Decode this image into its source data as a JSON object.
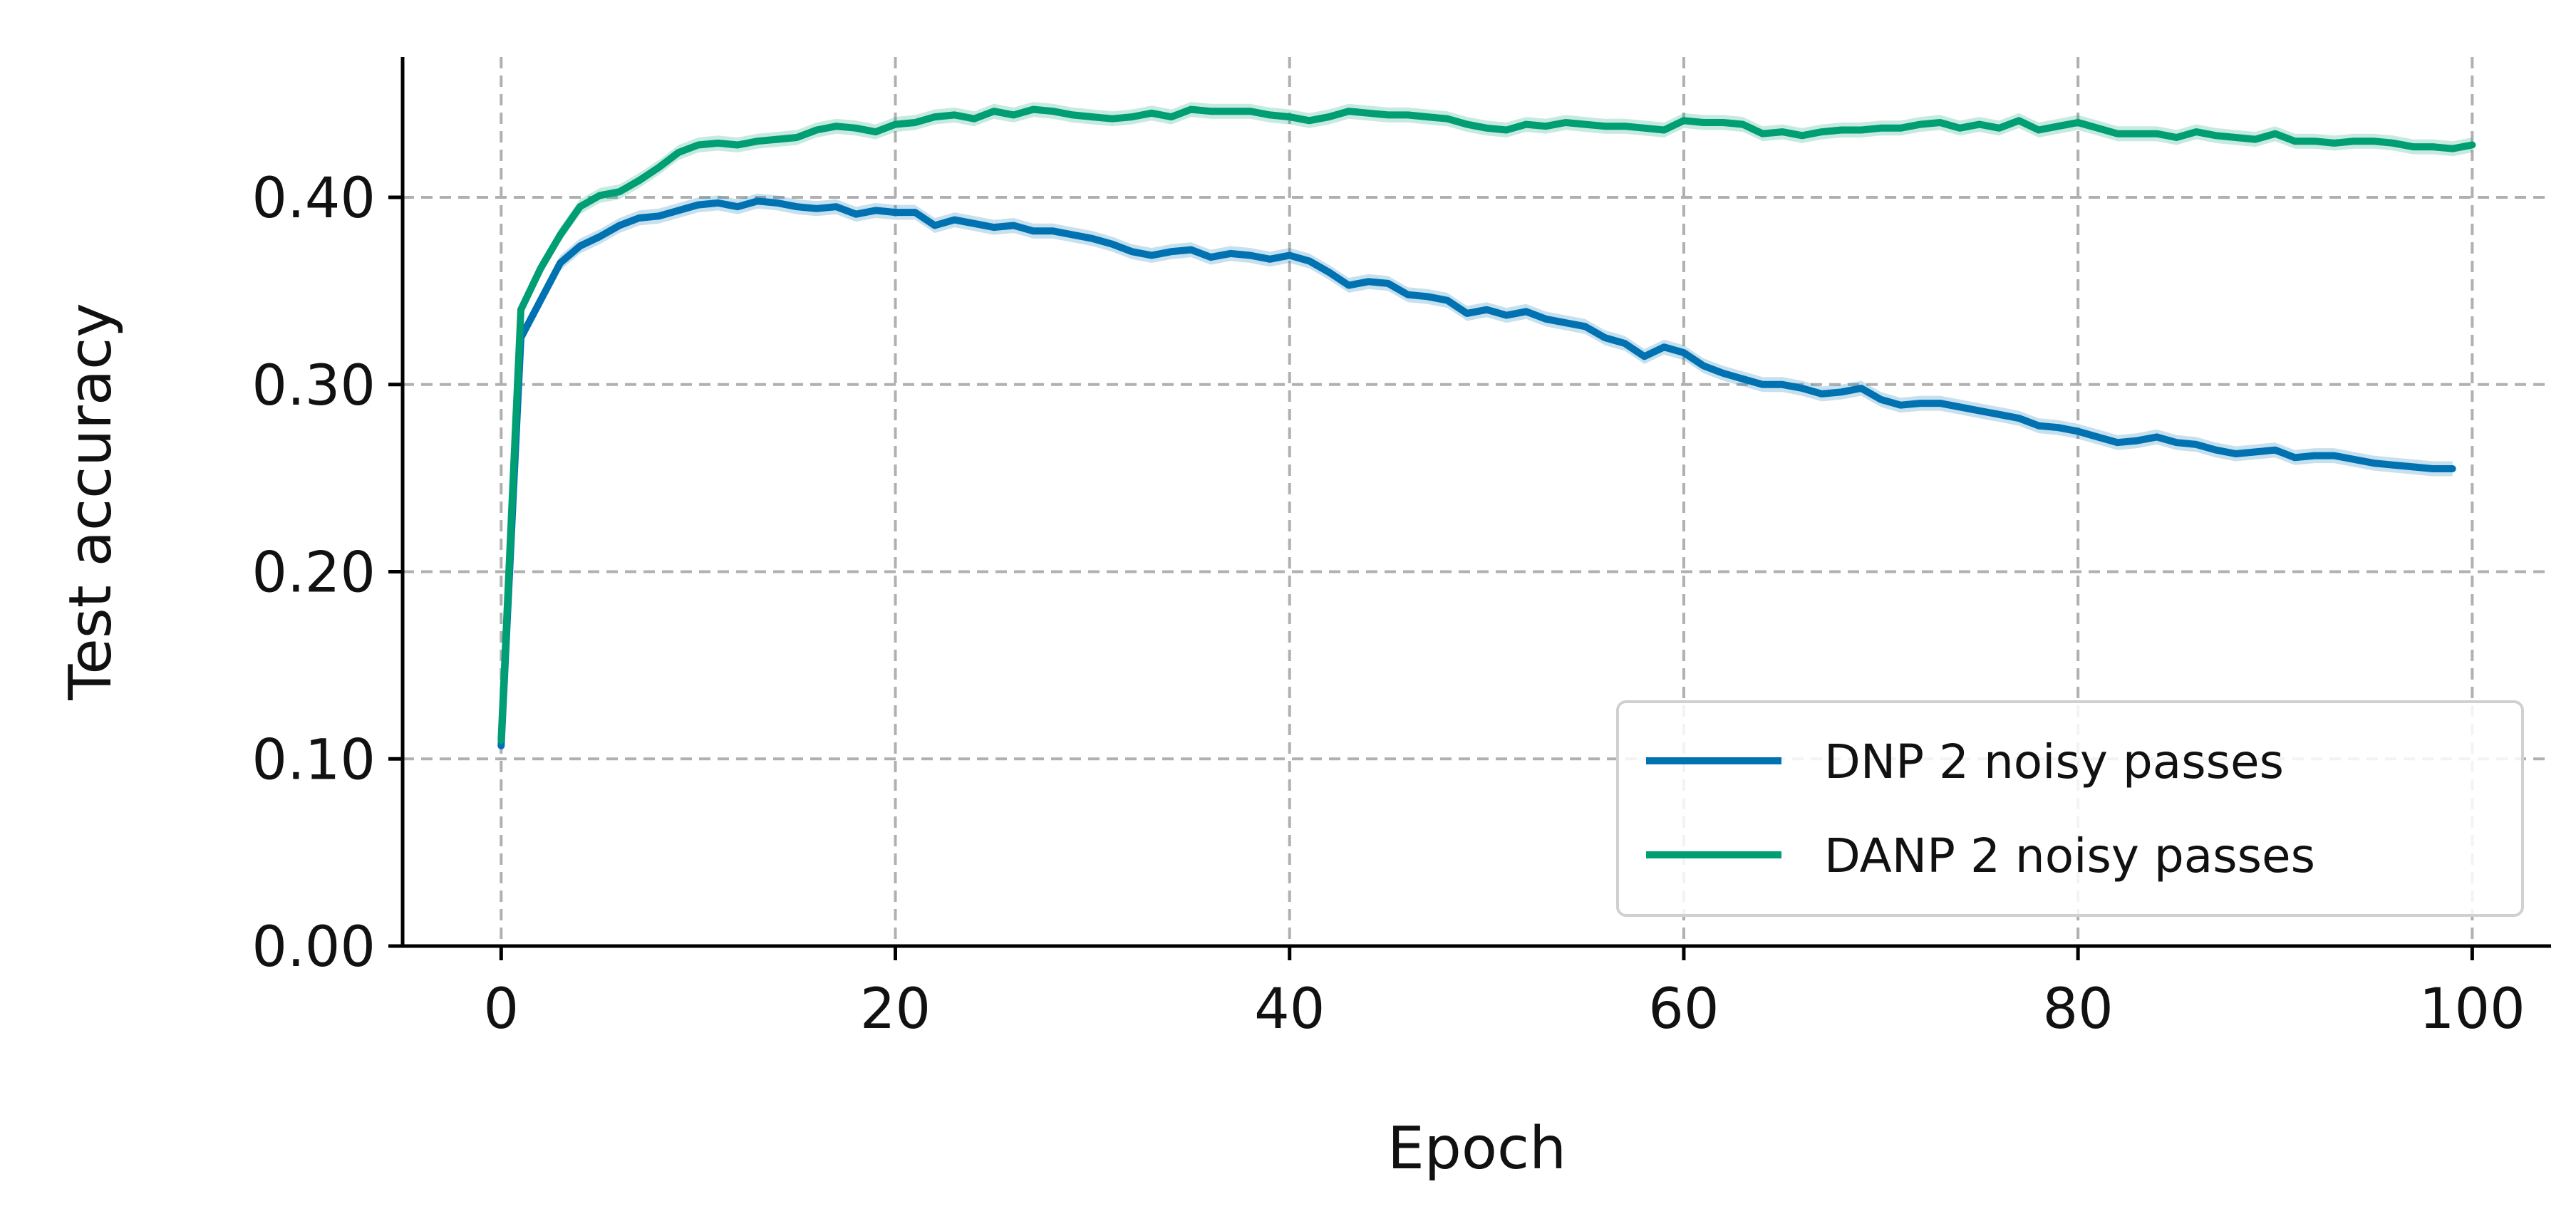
{
  "chart_data": {
    "type": "line",
    "title": "",
    "xlabel": "Epoch",
    "ylabel": "Test accuracy",
    "xlim": [
      -5,
      104
    ],
    "ylim": [
      0.0,
      0.475
    ],
    "xticks": [
      0,
      20,
      40,
      60,
      80,
      100
    ],
    "xtick_labels": [
      "0",
      "20",
      "40",
      "60",
      "80",
      "100"
    ],
    "yticks": [
      0.0,
      0.1,
      0.2,
      0.3,
      0.4
    ],
    "ytick_labels": [
      "0.00",
      "0.10",
      "0.20",
      "0.30",
      "0.40"
    ],
    "grid": true,
    "legend_position": "lower-right",
    "series": [
      {
        "name": "DNP 2 noisy passes",
        "color": "#0072B2",
        "x_start": 0,
        "x_step": 1,
        "values": [
          0.107,
          0.325,
          0.345,
          0.365,
          0.374,
          0.379,
          0.385,
          0.389,
          0.39,
          0.393,
          0.396,
          0.397,
          0.395,
          0.398,
          0.397,
          0.395,
          0.394,
          0.395,
          0.391,
          0.393,
          0.392,
          0.392,
          0.385,
          0.388,
          0.386,
          0.384,
          0.385,
          0.382,
          0.382,
          0.38,
          0.378,
          0.375,
          0.371,
          0.369,
          0.371,
          0.372,
          0.368,
          0.37,
          0.369,
          0.367,
          0.369,
          0.366,
          0.36,
          0.353,
          0.355,
          0.354,
          0.348,
          0.347,
          0.345,
          0.338,
          0.34,
          0.337,
          0.339,
          0.335,
          0.333,
          0.331,
          0.325,
          0.322,
          0.315,
          0.32,
          0.317,
          0.31,
          0.306,
          0.303,
          0.3,
          0.3,
          0.298,
          0.295,
          0.296,
          0.298,
          0.292,
          0.289,
          0.29,
          0.29,
          0.288,
          0.286,
          0.284,
          0.282,
          0.278,
          0.277,
          0.275,
          0.272,
          0.269,
          0.27,
          0.272,
          0.269,
          0.268,
          0.265,
          0.263,
          0.264,
          0.265,
          0.261,
          0.262,
          0.262,
          0.26,
          0.258,
          0.257,
          0.256,
          0.255,
          0.255
        ]
      },
      {
        "name": "DANP 2 noisy passes",
        "color": "#009E73",
        "x_start": 0,
        "x_step": 1,
        "values": [
          0.11,
          0.34,
          0.362,
          0.38,
          0.395,
          0.401,
          0.403,
          0.409,
          0.416,
          0.424,
          0.428,
          0.429,
          0.428,
          0.43,
          0.431,
          0.432,
          0.436,
          0.438,
          0.437,
          0.435,
          0.439,
          0.44,
          0.443,
          0.444,
          0.442,
          0.446,
          0.444,
          0.447,
          0.446,
          0.444,
          0.443,
          0.442,
          0.443,
          0.445,
          0.443,
          0.447,
          0.446,
          0.446,
          0.446,
          0.444,
          0.443,
          0.441,
          0.443,
          0.446,
          0.445,
          0.444,
          0.444,
          0.443,
          0.442,
          0.439,
          0.437,
          0.436,
          0.439,
          0.438,
          0.44,
          0.439,
          0.438,
          0.438,
          0.437,
          0.436,
          0.441,
          0.44,
          0.44,
          0.439,
          0.434,
          0.435,
          0.433,
          0.435,
          0.436,
          0.436,
          0.437,
          0.437,
          0.439,
          0.44,
          0.437,
          0.439,
          0.437,
          0.441,
          0.436,
          0.438,
          0.44,
          0.437,
          0.434,
          0.434,
          0.434,
          0.432,
          0.435,
          0.433,
          0.432,
          0.431,
          0.434,
          0.43,
          0.43,
          0.429,
          0.43,
          0.43,
          0.429,
          0.427,
          0.427,
          0.426,
          0.428
        ]
      }
    ]
  }
}
